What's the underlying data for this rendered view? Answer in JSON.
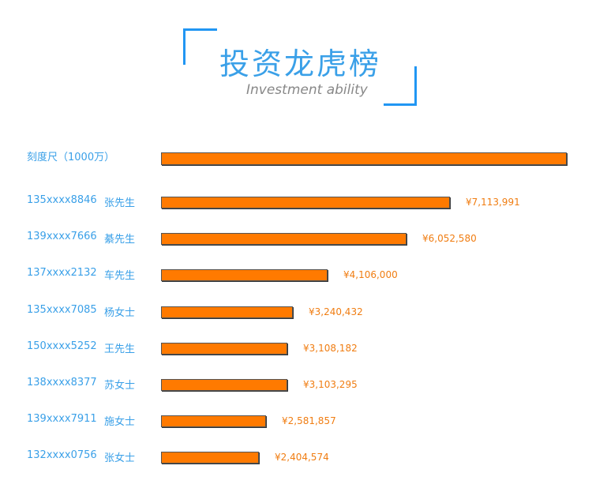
{
  "header": {
    "title": "投资龙虎榜",
    "subtitle": "Investment ability"
  },
  "colors": {
    "accent": "#2196f3",
    "label": "#3aa0e8",
    "bar": "#ff7a00",
    "value": "#f07d12"
  },
  "chart_data": {
    "type": "bar",
    "orientation": "horizontal",
    "scale_label": "刻度尺（1000万）",
    "scale_value": 10000000,
    "rows": [
      {
        "phone": "135xxxx8846",
        "name": "张先生",
        "value": 7113991,
        "value_label": "¥7,113,991"
      },
      {
        "phone": "139xxxx7666",
        "name": "綦先生",
        "value": 6052580,
        "value_label": "¥6,052,580"
      },
      {
        "phone": "137xxxx2132",
        "name": "车先生",
        "value": 4106000,
        "value_label": "¥4,106,000"
      },
      {
        "phone": "135xxxx7085",
        "name": "杨女士",
        "value": 3240432,
        "value_label": "¥3,240,432"
      },
      {
        "phone": "150xxxx5252",
        "name": "王先生",
        "value": 3108182,
        "value_label": "¥3,108,182"
      },
      {
        "phone": "138xxxx8377",
        "name": "苏女士",
        "value": 3103295,
        "value_label": "¥3,103,295"
      },
      {
        "phone": "139xxxx7911",
        "name": "施女士",
        "value": 2581857,
        "value_label": "¥2,581,857"
      },
      {
        "phone": "132xxxx0756",
        "name": "张女士",
        "value": 2404574,
        "value_label": "¥2,404,574"
      }
    ]
  }
}
